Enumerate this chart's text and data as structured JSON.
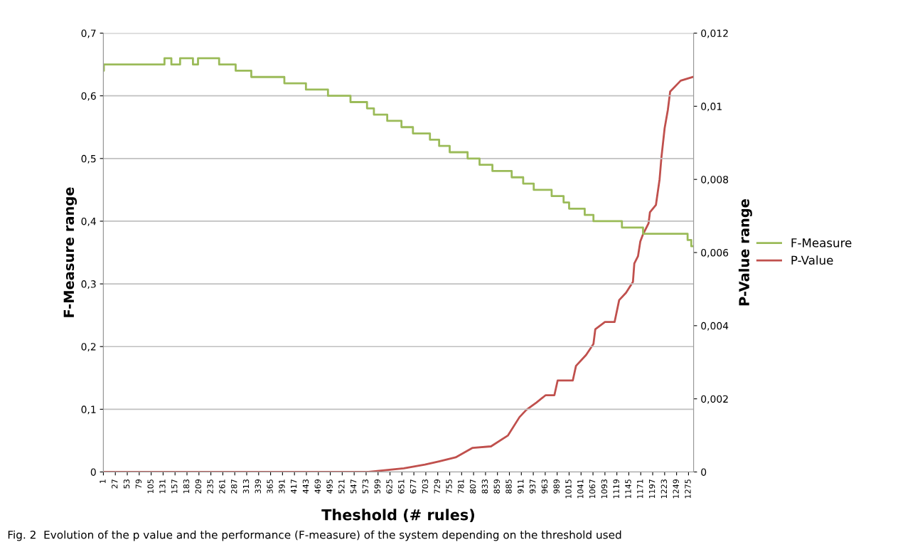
{
  "chart_data": {
    "type": "line",
    "xlabel": "Theshold (# rules)",
    "ylabel": "F-Measure range",
    "y2label": "P-Value range",
    "annotations": [
      "Fig. 2  Evolution of the p value and the performance (F-measure) of the system depending on the threshold used"
    ],
    "xlim": [
      1,
      1286
    ],
    "xticks": [
      1,
      27,
      53,
      79,
      105,
      131,
      157,
      183,
      209,
      235,
      261,
      287,
      313,
      339,
      365,
      391,
      417,
      443,
      469,
      495,
      521,
      547,
      573,
      599,
      625,
      651,
      677,
      703,
      729,
      755,
      781,
      807,
      833,
      859,
      885,
      911,
      937,
      963,
      989,
      1015,
      1041,
      1067,
      1093,
      1119,
      1145,
      1171,
      1197,
      1223,
      1249,
      1275
    ],
    "ylim": [
      0,
      0.7
    ],
    "yticks": [
      0,
      {
        "value": 0.1,
        "label": "0,1"
      },
      {
        "value": 0.2,
        "label": "0,2"
      },
      {
        "value": 0.3,
        "label": "0,3"
      },
      {
        "value": 0.4,
        "label": "0,4"
      },
      {
        "value": 0.5,
        "label": "0,5"
      },
      {
        "value": 0.6,
        "label": "0,6"
      },
      {
        "value": 0.7,
        "label": "0,7"
      }
    ],
    "y2lim": [
      0,
      0.012
    ],
    "y2ticks": [
      0,
      {
        "value": 0.002,
        "label": "0,002"
      },
      {
        "value": 0.004,
        "label": "0,004"
      },
      {
        "value": 0.006,
        "label": "0,006"
      },
      {
        "value": 0.008,
        "label": "0,008"
      },
      {
        "value": 0.01,
        "label": "0,01"
      },
      {
        "value": 0.012,
        "label": "0,012"
      }
    ],
    "grid": "y",
    "legend": "right",
    "series": [
      {
        "name": "F-Measure",
        "type": "step",
        "color": "#9bbb59",
        "x": [
          1,
          2,
          134,
          149,
          168,
          196,
          207,
          253,
          289,
          323,
          395,
          442,
          490,
          539,
          575,
          590,
          619,
          650,
          675,
          712,
          732,
          755,
          794,
          820,
          848,
          890,
          915,
          938,
          977,
          1003,
          1015,
          1049,
          1068,
          1130,
          1176,
          1273,
          1281,
          1286
        ],
        "values": [
          0.64,
          0.65,
          0.66,
          0.65,
          0.66,
          0.65,
          0.66,
          0.65,
          0.64,
          0.63,
          0.62,
          0.61,
          0.6,
          0.59,
          0.58,
          0.57,
          0.56,
          0.55,
          0.54,
          0.53,
          0.52,
          0.51,
          0.5,
          0.49,
          0.48,
          0.47,
          0.46,
          0.45,
          0.44,
          0.43,
          0.42,
          0.41,
          0.4,
          0.39,
          0.38,
          0.37,
          0.36,
          0.36
        ]
      },
      {
        "name": "P-Value",
        "axis": "y2",
        "color": "#c0504d",
        "x": [
          1,
          570,
          578,
          655,
          701,
          732,
          768,
          805,
          845,
          882,
          907,
          922,
          944,
          964,
          983,
          990,
          1023,
          1030,
          1052,
          1068,
          1072,
          1093,
          1114,
          1124,
          1139,
          1154,
          1157,
          1165,
          1170,
          1176,
          1188,
          1191,
          1204,
          1212,
          1216,
          1223,
          1230,
          1235,
          1258,
          1284
        ],
        "values": [
          0,
          0,
          0,
          0.0001,
          0.0002,
          0.00029,
          0.0004,
          0.00066,
          0.0007,
          0.001,
          0.0015,
          0.0017,
          0.0019,
          0.0021,
          0.0021,
          0.0025,
          0.0025,
          0.0029,
          0.0032,
          0.0035,
          0.0039,
          0.0041,
          0.0041,
          0.0047,
          0.0049,
          0.0052,
          0.0057,
          0.0059,
          0.0063,
          0.0065,
          0.0068,
          0.0071,
          0.0073,
          0.008,
          0.0086,
          0.0094,
          0.0099,
          0.0104,
          0.0107,
          0.0108
        ]
      }
    ]
  }
}
